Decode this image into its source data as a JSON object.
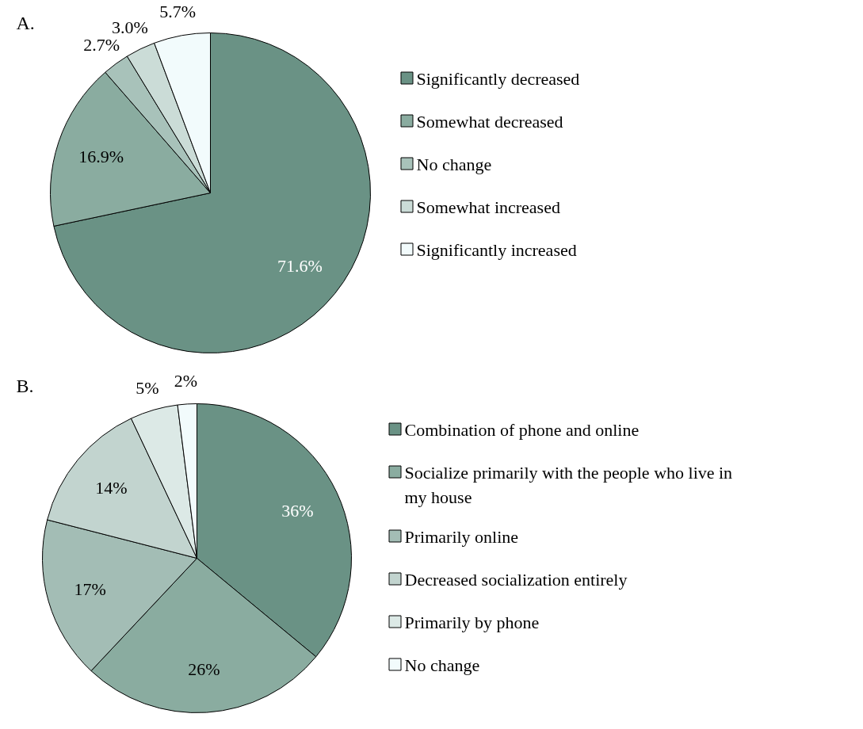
{
  "chart_data": [
    {
      "type": "pie",
      "title": "A.",
      "categories": [
        "Significantly decreased",
        "Somewhat decreased",
        "No change",
        "Somewhat increased",
        "Significantly increased"
      ],
      "values": [
        71.6,
        16.9,
        2.7,
        3.0,
        5.7
      ],
      "colors": [
        "#6a9285",
        "#8aaca0",
        "#a8c2ba",
        "#cbdcd7",
        "#f2fbfc"
      ],
      "value_labels": [
        "71.6%",
        "16.9%",
        "2.7%",
        "3.0%",
        "5.7%"
      ],
      "legend": "right"
    },
    {
      "type": "pie",
      "title": "B.",
      "categories": [
        "Combination of phone and online",
        "Socialize primarily with the people who live in my house",
        "Primarily online",
        "Decreased socialization entirely",
        "Primarily by phone",
        "No change"
      ],
      "values": [
        36,
        26,
        17,
        14,
        5,
        2
      ],
      "colors": [
        "#6a9285",
        "#8aaca0",
        "#a3bdb5",
        "#c2d4cf",
        "#dce9e6",
        "#f2fbfc"
      ],
      "value_labels": [
        "36%",
        "26%",
        "17%",
        "14%",
        "5%",
        "2%"
      ],
      "legend": "right"
    }
  ]
}
